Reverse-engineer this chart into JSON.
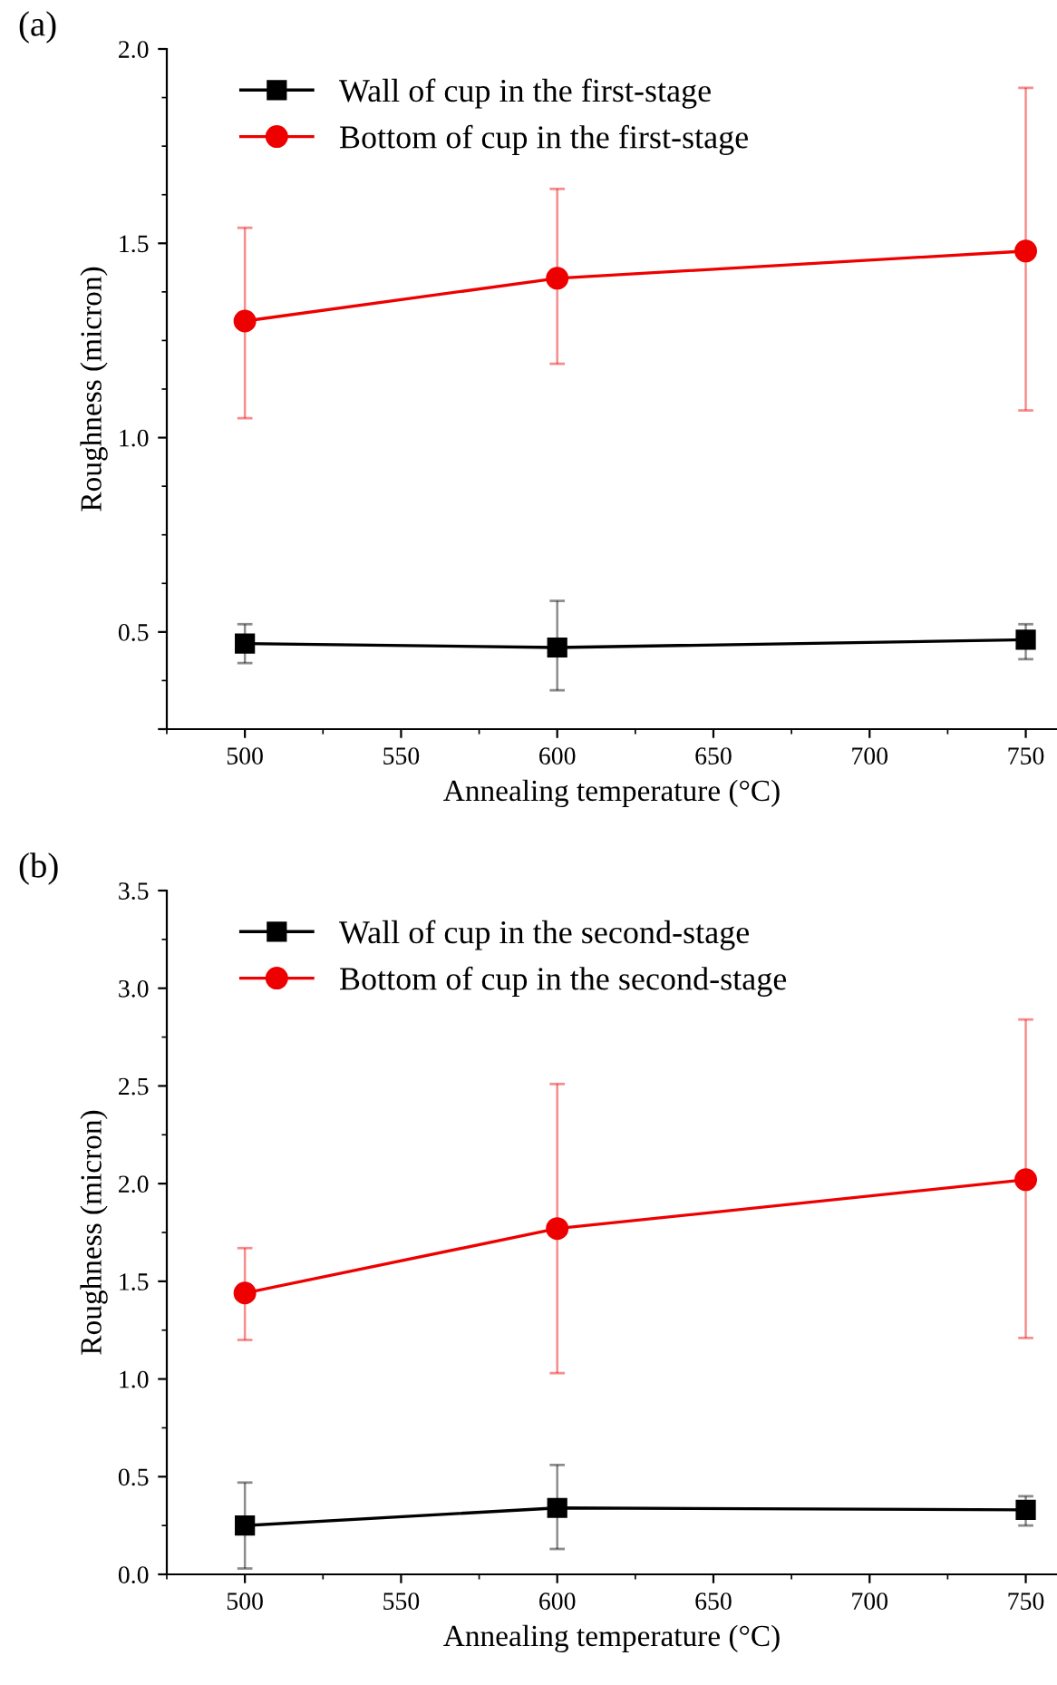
{
  "chart_data": [
    {
      "type": "line",
      "title": "(a)",
      "xlabel": "Annealing temperature (°C)",
      "ylabel": "Roughness (micron)",
      "x": [
        500,
        600,
        750
      ],
      "xlim": [
        475,
        760
      ],
      "xticks": [
        500,
        550,
        600,
        650,
        700,
        750
      ],
      "ylim": [
        0.25,
        2.0
      ],
      "yticks": [
        {
          "value": 0.25,
          "label": null
        },
        0.5,
        {
          "value": 1,
          "label": "1.0"
        },
        1.5,
        {
          "value": 2,
          "label": "2.0"
        }
      ],
      "legend": "top left",
      "series": [
        {
          "name": "Wall of cup in the first-stage",
          "color": "#000000",
          "marker": "square",
          "values": [
            0.47,
            0.46,
            0.48
          ],
          "errors": [
            [
              0.42,
              0.52
            ],
            [
              0.35,
              0.58
            ],
            [
              0.43,
              0.52
            ]
          ]
        },
        {
          "name": "Bottom of cup in the first-stage",
          "color": "#ee0000",
          "marker": "circle",
          "values": [
            1.3,
            1.41,
            1.48
          ],
          "errors": [
            [
              1.05,
              1.54
            ],
            [
              1.19,
              1.64
            ],
            [
              1.07,
              1.9
            ]
          ]
        }
      ]
    },
    {
      "type": "line",
      "title": "(b)",
      "xlabel": "Annealing temperature (°C)",
      "ylabel": "Roughness (micron)",
      "x": [
        500,
        600,
        750
      ],
      "xlim": [
        475,
        760
      ],
      "xticks": [
        500,
        550,
        600,
        650,
        700,
        750
      ],
      "ylim": [
        0.0,
        3.5
      ],
      "yticks": [
        {
          "value": 0,
          "label": "0.0"
        },
        0.5,
        {
          "value": 1,
          "label": "1.0"
        },
        1.5,
        {
          "value": 2,
          "label": "2.0"
        },
        2.5,
        {
          "value": 3,
          "label": "3.0"
        },
        3.5
      ],
      "legend": "top left",
      "series": [
        {
          "name": "Wall of cup in the second-stage",
          "color": "#000000",
          "marker": "square",
          "values": [
            0.25,
            0.34,
            0.33
          ],
          "errors": [
            [
              0.03,
              0.47
            ],
            [
              0.13,
              0.56
            ],
            [
              0.25,
              0.4
            ]
          ]
        },
        {
          "name": "Bottom of cup in the second-stage",
          "color": "#ee0000",
          "marker": "circle",
          "values": [
            1.44,
            1.77,
            2.02
          ],
          "errors": [
            [
              1.2,
              1.67
            ],
            [
              1.03,
              2.51
            ],
            [
              1.21,
              2.84
            ]
          ]
        }
      ]
    }
  ]
}
